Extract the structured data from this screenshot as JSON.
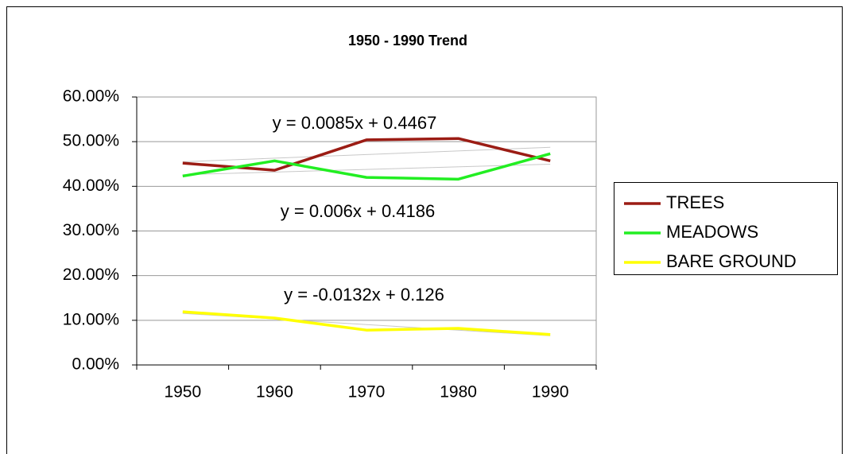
{
  "chart_data": {
    "type": "line",
    "title": "1950 - 1990 Trend",
    "categories": [
      "1950",
      "1960",
      "1970",
      "1980",
      "1990"
    ],
    "series": [
      {
        "name": "TREES",
        "color": "#9b1c14",
        "values": [
          45.2,
          43.6,
          50.4,
          50.7,
          45.7
        ]
      },
      {
        "name": "MEADOWS",
        "color": "#22ee22",
        "values": [
          42.3,
          45.7,
          42.0,
          41.6,
          47.3
        ]
      },
      {
        "name": "BARE GROUND",
        "color": "#ffff00",
        "values": [
          11.9,
          10.5,
          7.8,
          8.2,
          6.8
        ]
      }
    ],
    "annotations": [
      "y = 0.0085x + 0.4467",
      "y = 0.006x + 0.4186",
      "y = -0.0132x + 0.126"
    ],
    "ylim": [
      0,
      60
    ],
    "yticks": [
      {
        "value": 0,
        "label": "0.00%"
      },
      {
        "value": 10,
        "label": "10.00%"
      },
      {
        "value": 20,
        "label": "20.00%"
      },
      {
        "value": 30,
        "label": "30.00%"
      },
      {
        "value": 40,
        "label": "40.00%"
      },
      {
        "value": 50,
        "label": "50.00%"
      },
      {
        "value": 60,
        "label": "60.00%"
      }
    ],
    "grid": true,
    "legend": "right"
  }
}
